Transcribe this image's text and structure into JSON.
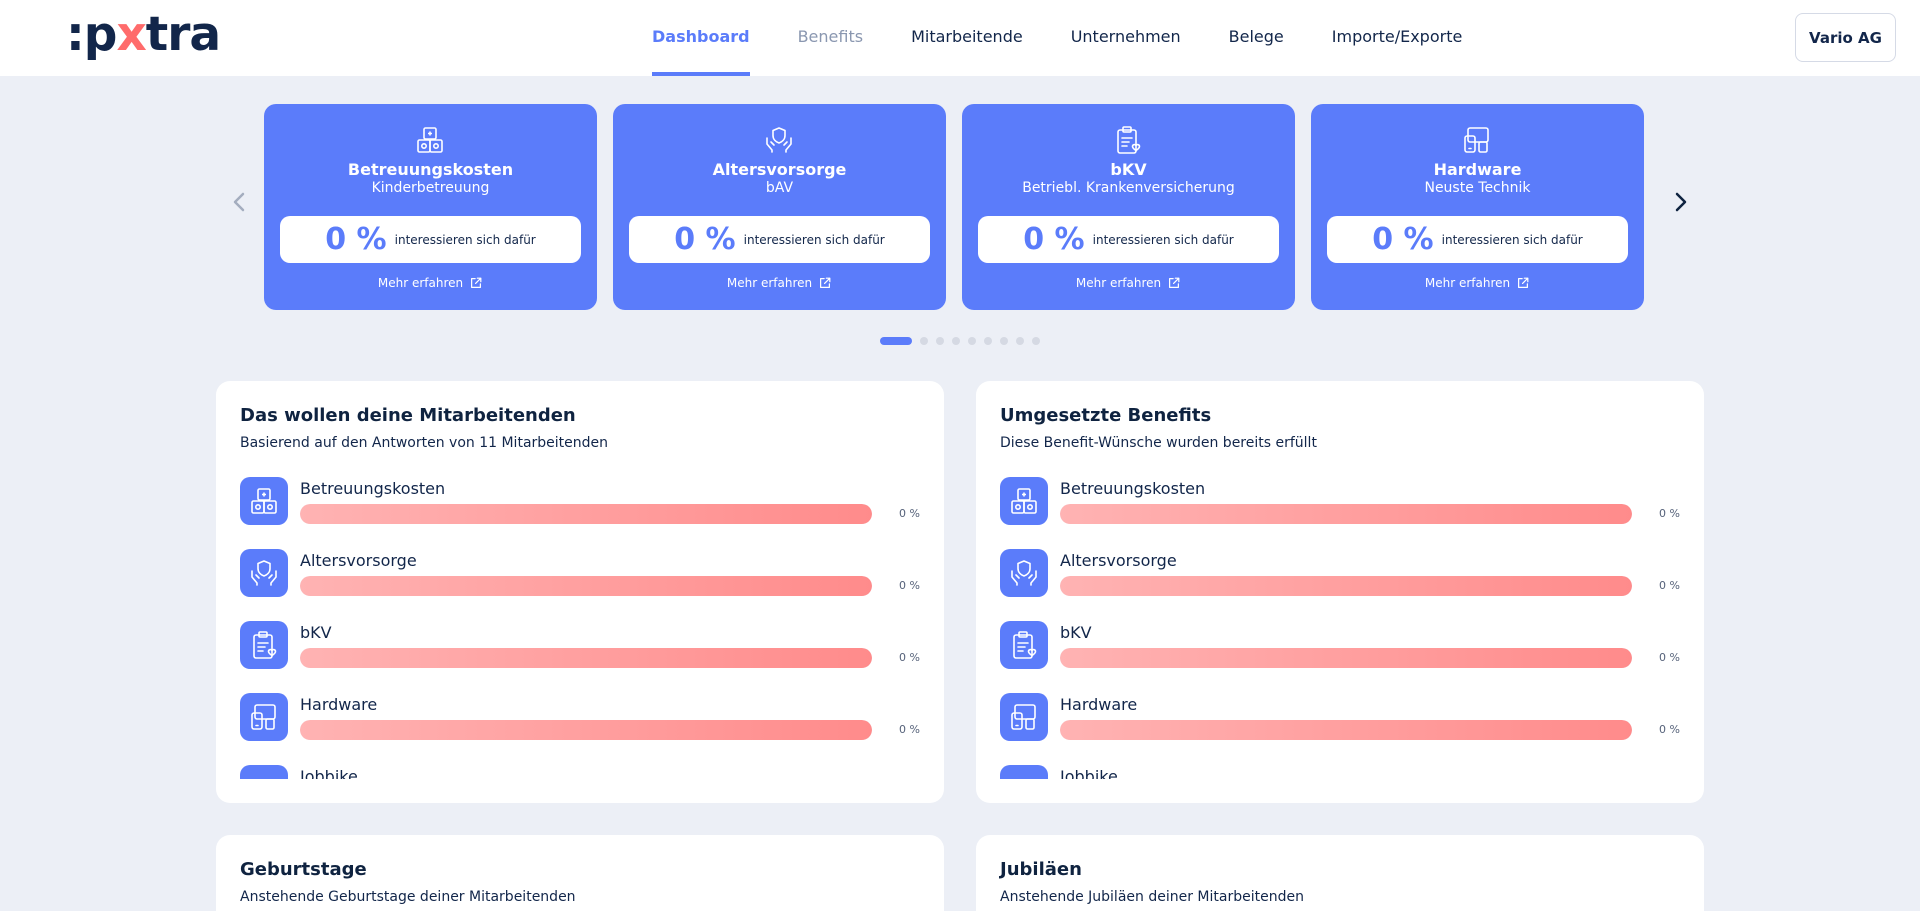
{
  "header": {
    "logo": {
      "prefix": ":p",
      "x": "x",
      "suffix": "tra"
    },
    "nav": [
      "Dashboard",
      "Benefits",
      "Mitarbeitende",
      "Unternehmen",
      "Belege",
      "Importe/Exporte"
    ],
    "company": "Vario AG"
  },
  "carousel": {
    "cards": [
      {
        "title": "Betreuungskosten",
        "subtitle": "Kinderbetreuung",
        "percent": "0 %",
        "stat_label": "interessieren sich dafür",
        "link": "Mehr erfahren",
        "icon": "blocks-icon"
      },
      {
        "title": "Altersvorsorge",
        "subtitle": "bAV",
        "percent": "0 %",
        "stat_label": "interessieren sich dafür",
        "link": "Mehr erfahren",
        "icon": "hands-shield-icon"
      },
      {
        "title": "bKV",
        "subtitle": "Betriebl. Krankenversicherung",
        "percent": "0 %",
        "stat_label": "interessieren sich dafür",
        "link": "Mehr erfahren",
        "icon": "clipboard-heart-icon"
      },
      {
        "title": "Hardware",
        "subtitle": "Neuste Technik",
        "percent": "0 %",
        "stat_label": "interessieren sich dafür",
        "link": "Mehr erfahren",
        "icon": "devices-icon"
      }
    ],
    "dots_count": 9,
    "active_dot": 0
  },
  "wants": {
    "title": "Das wollen deine Mitarbeitenden",
    "subtitle": "Basierend auf den Antworten von 11 Mitarbeitenden",
    "items": [
      {
        "label": "Betreuungskosten",
        "value": "0 %"
      },
      {
        "label": "Altersvorsorge",
        "value": "0 %"
      },
      {
        "label": "bKV",
        "value": "0 %"
      },
      {
        "label": "Hardware",
        "value": "0 %"
      },
      {
        "label": "Jobbike",
        "value": ""
      }
    ]
  },
  "implemented": {
    "title": "Umgesetzte Benefits",
    "subtitle": "Diese Benefit-Wünsche wurden bereits erfüllt",
    "items": [
      {
        "label": "Betreuungskosten",
        "value": "0 %"
      },
      {
        "label": "Altersvorsorge",
        "value": "0 %"
      },
      {
        "label": "bKV",
        "value": "0 %"
      },
      {
        "label": "Hardware",
        "value": "0 %"
      },
      {
        "label": "Jobbike",
        "value": ""
      }
    ]
  },
  "birthdays": {
    "title": "Geburtstage",
    "subtitle": "Anstehende Geburtstage deiner Mitarbeitenden"
  },
  "anniversaries": {
    "title": "Jubiläen",
    "subtitle": "Anstehende Jubiläen deiner Mitarbeitenden"
  }
}
